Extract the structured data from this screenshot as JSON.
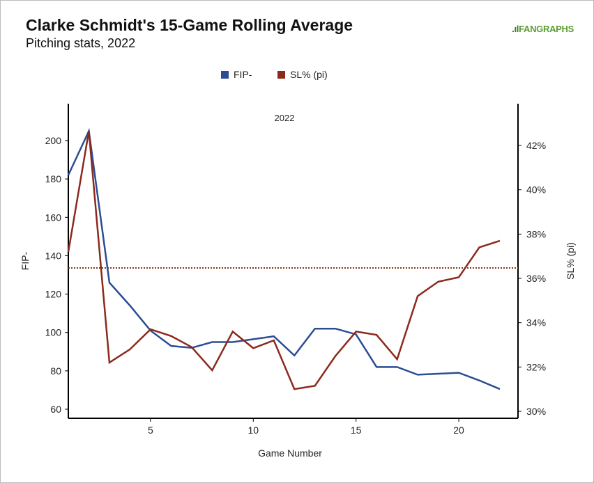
{
  "header": {
    "title": "Clarke Schmidt's 15-Game Rolling Average",
    "subtitle": "Pitching stats, 2022",
    "logo": "FANGRAPHS"
  },
  "colors": {
    "fip": "#2b4d94",
    "sl": "#8b2a1c",
    "avg_line": "#7a3a1a"
  },
  "chart_data": {
    "type": "line",
    "panel_label": "2022",
    "xlabel": "Game Number",
    "ylabel_left": "FIP-",
    "ylabel_right": "SL% (pi)",
    "xlim": [
      1,
      22
    ],
    "ylim_left": [
      56,
      212
    ],
    "ylim_right": [
      29.7,
      43.2
    ],
    "xticks": [
      5,
      10,
      15,
      20
    ],
    "yticks_left": [
      60,
      80,
      100,
      120,
      140,
      160,
      180,
      200
    ],
    "yticks_right": [
      "30%",
      "32%",
      "34%",
      "36%",
      "38%",
      "40%",
      "42%"
    ],
    "yticks_right_values": [
      30,
      32,
      34,
      36,
      38,
      40,
      42
    ],
    "legend": [
      "FIP-",
      "SL% (pi)"
    ],
    "legend_position": "top-center",
    "x": [
      1,
      2,
      3,
      4,
      5,
      6,
      7,
      8,
      9,
      10,
      11,
      12,
      13,
      14,
      15,
      16,
      17,
      18,
      19,
      20,
      21,
      22
    ],
    "series": [
      {
        "name": "FIP-",
        "axis": "left",
        "values": [
          182,
          205,
          126,
          114,
          101,
          93,
          92,
          95,
          95,
          96.5,
          98,
          88,
          102,
          102,
          99,
          82,
          82,
          78,
          78.5,
          79,
          75,
          70.5
        ]
      },
      {
        "name": "SL% (pi)",
        "axis": "right",
        "values": [
          37.2,
          42.65,
          32.2,
          32.8,
          33.7,
          33.4,
          32.9,
          31.85,
          33.6,
          32.85,
          33.2,
          31.0,
          31.15,
          32.5,
          33.6,
          33.45,
          32.35,
          35.2,
          35.85,
          36.05,
          37.4,
          37.7
        ]
      }
    ],
    "reference_line": {
      "axis": "right",
      "value": 36.47,
      "style": "dotted"
    }
  }
}
